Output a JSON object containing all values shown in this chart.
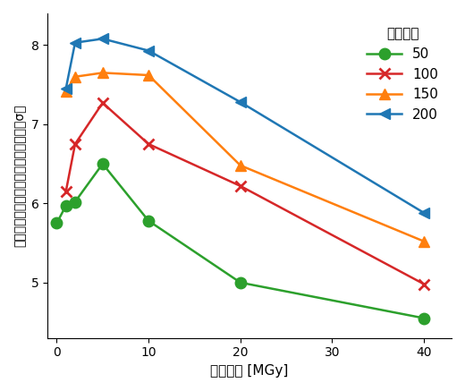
{
  "x": [
    0,
    1,
    2,
    5,
    10,
    20,
    40
  ],
  "series": [
    {
      "label": "50",
      "color": "#2ca02c",
      "marker": "o",
      "y": [
        5.75,
        5.97,
        6.02,
        6.5,
        5.78,
        5.0,
        4.55
      ]
    },
    {
      "label": "100",
      "color": "#d62728",
      "marker": "x",
      "y": [
        null,
        6.15,
        6.75,
        7.27,
        6.75,
        6.22,
        4.98
      ]
    },
    {
      "label": "150",
      "color": "#ff7f0e",
      "marker": "^",
      "y": [
        null,
        7.42,
        7.6,
        7.65,
        7.62,
        6.48,
        5.52
      ]
    },
    {
      "label": "200",
      "color": "#1f77b4",
      "marker": "<",
      "y": [
        null,
        7.45,
        8.03,
        8.08,
        7.93,
        7.28,
        5.88
      ]
    }
  ],
  "xlabel": "吸収線量 [MGy]",
  "ylabel": "硫黄原子の電子密度ピークの平均値（σ）",
  "legend_title": "データ数",
  "ylim": [
    4.3,
    8.4
  ],
  "xlim": [
    -1,
    43
  ],
  "xticks": [
    0,
    10,
    20,
    30,
    40
  ],
  "yticks": [
    5,
    6,
    7,
    8
  ],
  "markersize": 9,
  "linewidth": 1.8,
  "figsize": [
    5.2,
    4.37
  ],
  "dpi": 100
}
